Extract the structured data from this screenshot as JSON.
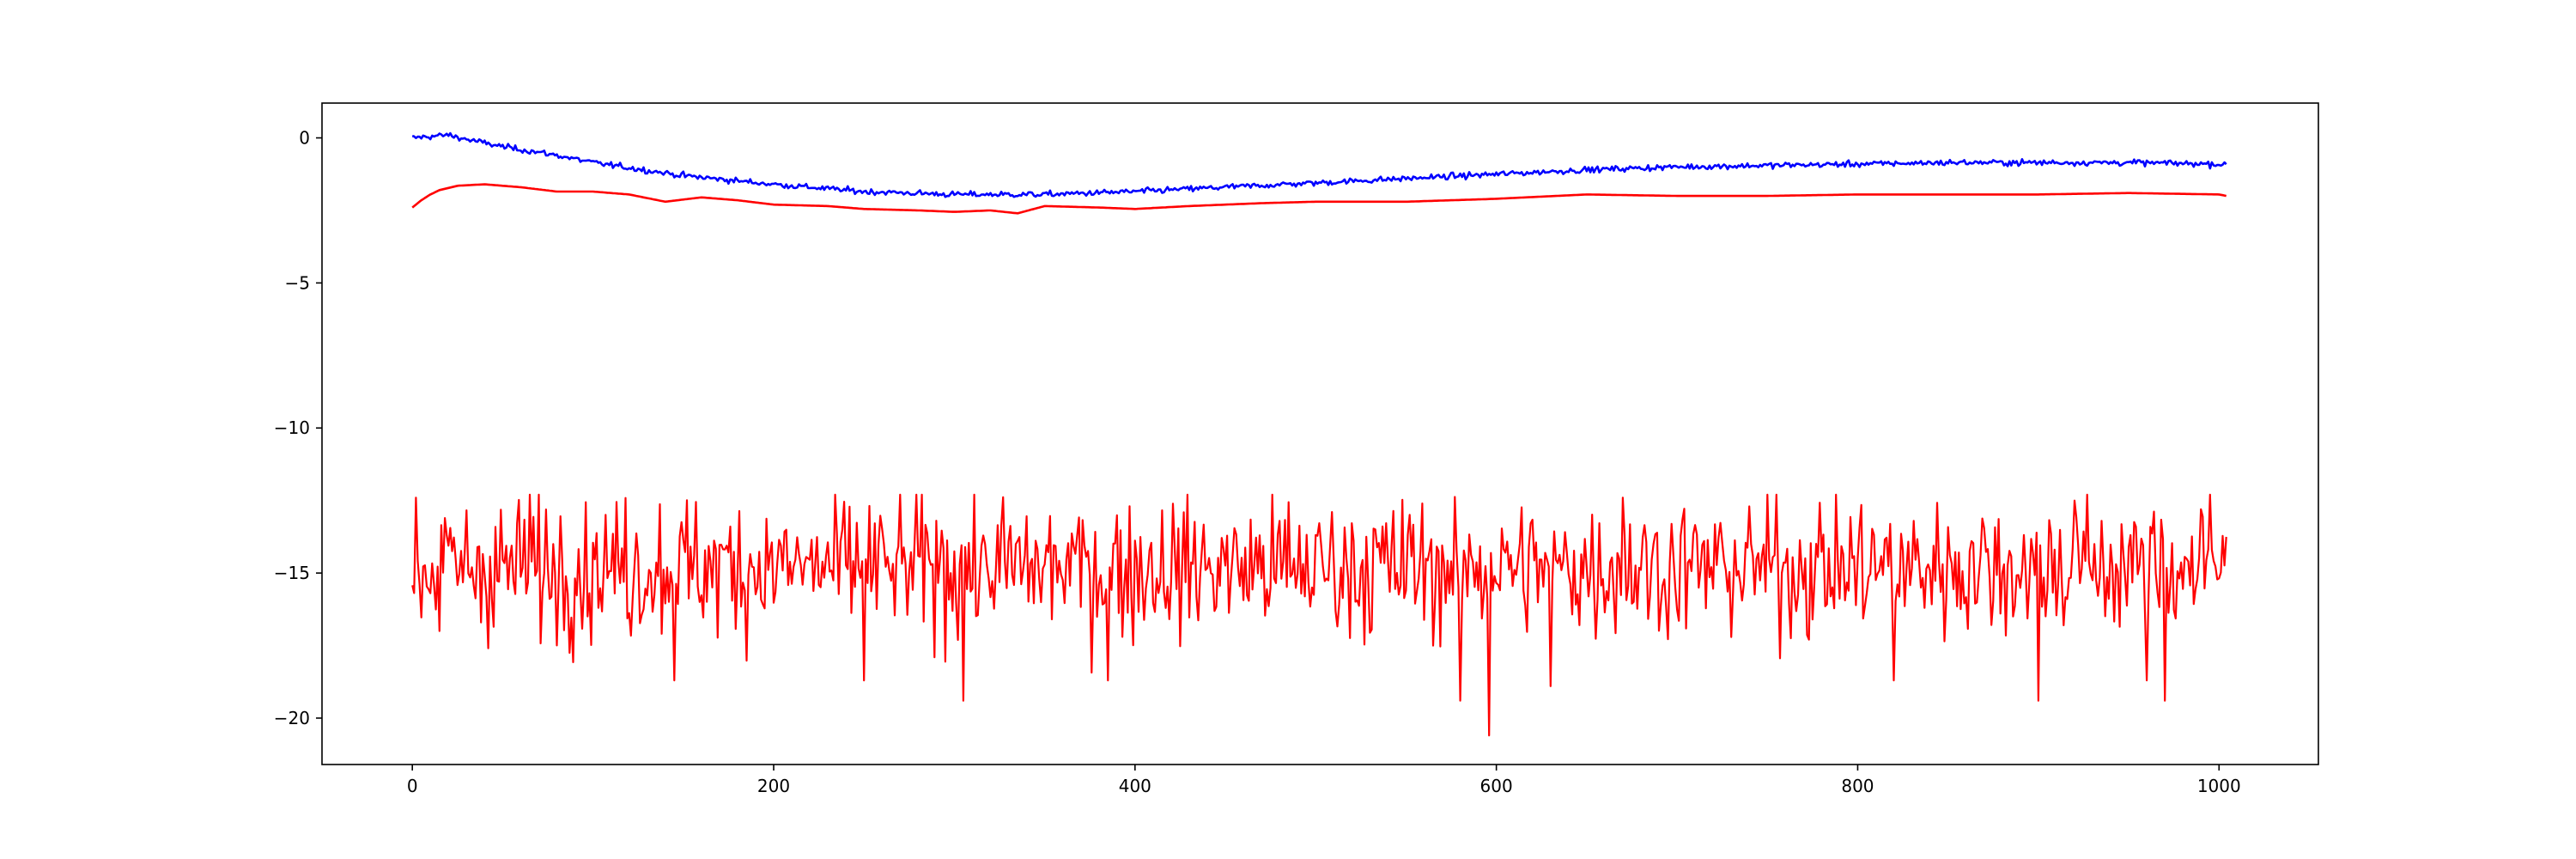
{
  "chart_data": {
    "type": "line",
    "title": "",
    "xlabel": "",
    "ylabel": "",
    "xlim": [
      -50,
      1055
    ],
    "ylim": [
      -21.6,
      1.2
    ],
    "grid": false,
    "legend": "none",
    "xticks": [
      0,
      200,
      400,
      600,
      800,
      1000
    ],
    "yticks": [
      0,
      -5,
      -10,
      -15,
      -20
    ],
    "xtick_labels": [
      "0",
      "200",
      "400",
      "600",
      "800",
      "1000"
    ],
    "ytick_labels": [
      "0",
      "−5",
      "−10",
      "−15",
      "−20"
    ],
    "x_range": [
      0,
      1004
    ],
    "series": [
      {
        "color": "#0000ff",
        "style": "noisy-smooth",
        "noise": 0.05,
        "points": [
          [
            0,
            0.0
          ],
          [
            10,
            0.05
          ],
          [
            20,
            0.1
          ],
          [
            30,
            -0.05
          ],
          [
            50,
            -0.3
          ],
          [
            80,
            -0.6
          ],
          [
            100,
            -0.85
          ],
          [
            150,
            -1.3
          ],
          [
            200,
            -1.6
          ],
          [
            250,
            -1.85
          ],
          [
            300,
            -1.95
          ],
          [
            350,
            -1.95
          ],
          [
            400,
            -1.85
          ],
          [
            450,
            -1.7
          ],
          [
            500,
            -1.55
          ],
          [
            550,
            -1.4
          ],
          [
            600,
            -1.25
          ],
          [
            650,
            -1.1
          ],
          [
            700,
            -1.0
          ],
          [
            750,
            -0.95
          ],
          [
            800,
            -0.9
          ],
          [
            850,
            -0.85
          ],
          [
            900,
            -0.85
          ],
          [
            950,
            -0.85
          ],
          [
            1000,
            -0.9
          ],
          [
            1004,
            -0.95
          ]
        ]
      },
      {
        "color": "#ff0000",
        "style": "smooth",
        "points": [
          [
            0,
            -2.4
          ],
          [
            5,
            -2.15
          ],
          [
            10,
            -1.95
          ],
          [
            15,
            -1.8
          ],
          [
            25,
            -1.65
          ],
          [
            40,
            -1.6
          ],
          [
            60,
            -1.7
          ],
          [
            80,
            -1.85
          ],
          [
            100,
            -1.85
          ],
          [
            120,
            -1.95
          ],
          [
            140,
            -2.2
          ],
          [
            160,
            -2.05
          ],
          [
            180,
            -2.15
          ],
          [
            200,
            -2.3
          ],
          [
            230,
            -2.35
          ],
          [
            250,
            -2.45
          ],
          [
            280,
            -2.5
          ],
          [
            300,
            -2.55
          ],
          [
            320,
            -2.5
          ],
          [
            335,
            -2.6
          ],
          [
            350,
            -2.35
          ],
          [
            380,
            -2.4
          ],
          [
            400,
            -2.45
          ],
          [
            430,
            -2.35
          ],
          [
            470,
            -2.25
          ],
          [
            500,
            -2.2
          ],
          [
            550,
            -2.2
          ],
          [
            600,
            -2.1
          ],
          [
            650,
            -1.95
          ],
          [
            700,
            -2.0
          ],
          [
            750,
            -2.0
          ],
          [
            800,
            -1.95
          ],
          [
            850,
            -1.95
          ],
          [
            900,
            -1.95
          ],
          [
            950,
            -1.9
          ],
          [
            1000,
            -1.95
          ],
          [
            1004,
            -2.0
          ]
        ]
      },
      {
        "color": "#ff0000",
        "style": "noise",
        "mean": -14.8,
        "spread": 1.2,
        "min": -20.6,
        "max": -12.3,
        "spikes": [
          [
            2,
            -12.4
          ],
          [
            15,
            -17.0
          ],
          [
            65,
            -12.3
          ],
          [
            145,
            -18.7
          ],
          [
            250,
            -18.7
          ],
          [
            305,
            -19.4
          ],
          [
            385,
            -18.7
          ],
          [
            580,
            -19.4
          ],
          [
            596,
            -20.6
          ],
          [
            630,
            -18.9
          ],
          [
            820,
            -18.7
          ],
          [
            900,
            -19.4
          ],
          [
            960,
            -18.7
          ],
          [
            970,
            -19.4
          ],
          [
            990,
            -12.8
          ],
          [
            670,
            -12.4
          ],
          [
            920,
            -12.5
          ]
        ]
      }
    ]
  }
}
